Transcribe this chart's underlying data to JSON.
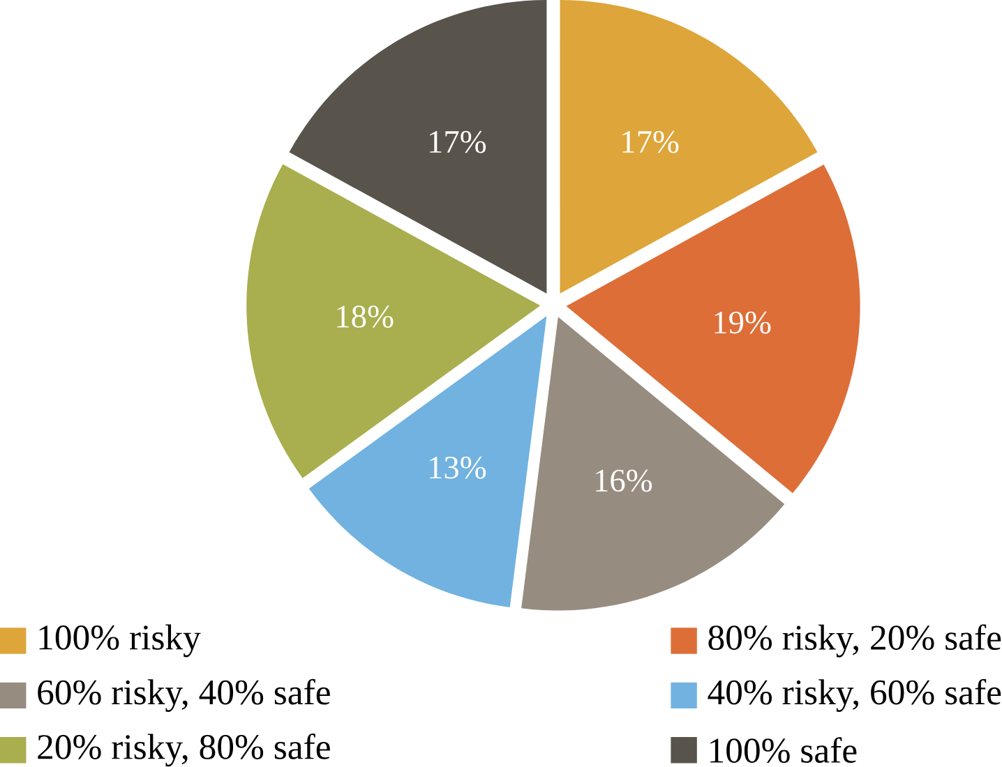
{
  "chart_data": {
    "type": "pie",
    "categories": [
      "100% risky",
      "80% risky, 20% safe",
      "60% risky, 40% safe",
      "40% risky, 60% safe",
      "20% risky, 80% safe",
      "100% safe"
    ],
    "values": [
      17,
      19,
      16,
      13,
      18,
      17
    ],
    "colors": [
      "#dda53a",
      "#dd6e38",
      "#978c80",
      "#71b2e0",
      "#a9ae4e",
      "#58544b"
    ],
    "value_labels": [
      "17%",
      "19%",
      "16%",
      "13%",
      "18%",
      "17%"
    ],
    "legend": "bottom"
  }
}
